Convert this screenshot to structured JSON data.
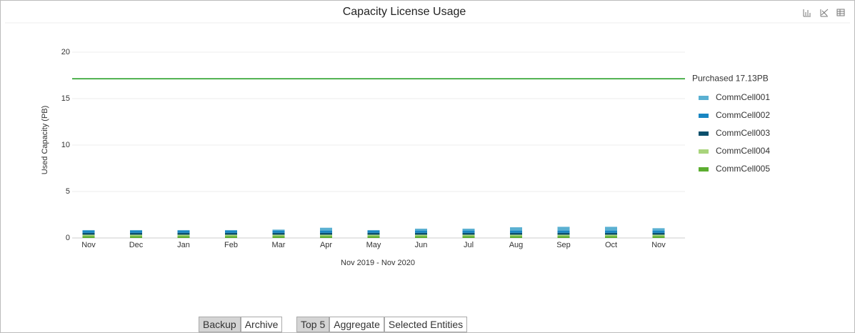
{
  "chart_data": {
    "type": "stacked-bar",
    "title": "Capacity License Usage",
    "x_label": "Nov 2019 - Nov 2020",
    "y_label": "Used Capacity (PB)",
    "categories": [
      "Nov",
      "Dec",
      "Jan",
      "Feb",
      "Mar",
      "Apr",
      "May",
      "Jun",
      "Jul",
      "Aug",
      "Sep",
      "Oct",
      "Nov"
    ],
    "series": [
      {
        "name": "CommCell001",
        "color": "#5ab0d2",
        "values": [
          0.05,
          0.05,
          0.05,
          0.05,
          0.1,
          0.3,
          0.05,
          0.2,
          0.2,
          0.35,
          0.4,
          0.4,
          0.25
        ]
      },
      {
        "name": "CommCell002",
        "color": "#1986c2",
        "values": [
          0.25,
          0.25,
          0.25,
          0.25,
          0.25,
          0.25,
          0.25,
          0.25,
          0.25,
          0.25,
          0.25,
          0.25,
          0.25
        ]
      },
      {
        "name": "CommCell003",
        "color": "#0b4f6c",
        "values": [
          0.2,
          0.2,
          0.2,
          0.2,
          0.2,
          0.2,
          0.2,
          0.2,
          0.2,
          0.2,
          0.2,
          0.2,
          0.2
        ]
      },
      {
        "name": "CommCell004",
        "color": "#a9d47c",
        "values": [
          0.15,
          0.15,
          0.15,
          0.15,
          0.15,
          0.15,
          0.15,
          0.15,
          0.15,
          0.15,
          0.15,
          0.15,
          0.15
        ]
      },
      {
        "name": "CommCell005",
        "color": "#5cad30",
        "values": [
          0.2,
          0.2,
          0.2,
          0.2,
          0.2,
          0.2,
          0.2,
          0.2,
          0.2,
          0.2,
          0.2,
          0.2,
          0.2
        ]
      }
    ],
    "reference_line": {
      "value": 17.13,
      "label": "Purchased 17.13PB",
      "color": "#1a9a1a"
    },
    "ylim": [
      0,
      20
    ],
    "yticks": [
      0,
      5,
      10,
      15,
      20
    ],
    "grid": true,
    "legend": "right"
  },
  "buttons": [
    {
      "label": "Backup",
      "selected": true
    },
    {
      "label": "Archive",
      "selected": false
    },
    {
      "label": "Top 5",
      "selected": true
    },
    {
      "label": "Aggregate",
      "selected": false
    },
    {
      "label": "Selected Entities",
      "selected": false
    }
  ]
}
